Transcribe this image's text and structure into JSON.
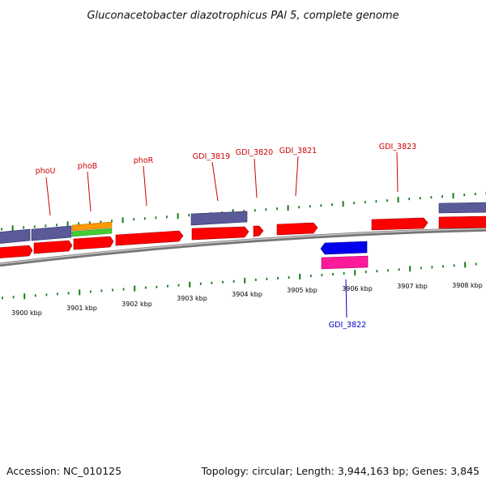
{
  "title": "Gluconacetobacter diazotrophicus PAl 5, complete genome",
  "footer": {
    "accession": "Accession: NC_010125",
    "stats": "Topology: circular; Length: 3,944,163 bp; Genes: 3,845"
  },
  "colors": {
    "gene_red": "#ff0000",
    "gene_purple": "#5a5a99",
    "gene_orange": "#ff9900",
    "gene_green": "#44cc33",
    "gene_blue": "#0000ee",
    "gene_magenta": "#ff1a9c",
    "label_red": "#cc0000",
    "label_blue": "#0000cc",
    "backbone": "#888888",
    "tick": "#1a7a1a"
  },
  "kbp_labels": [
    "3900 kbp",
    "3901 kbp",
    "3902 kbp",
    "3903 kbp",
    "3904 kbp",
    "3905 kbp",
    "3906 kbp",
    "3907 kbp",
    "3908 kbp"
  ],
  "gene_labels": [
    {
      "text": "phoU",
      "color": "red"
    },
    {
      "text": "phoB",
      "color": "red"
    },
    {
      "text": "phoR",
      "color": "red"
    },
    {
      "text": "GDI_3819",
      "color": "red"
    },
    {
      "text": "GDI_3820",
      "color": "red"
    },
    {
      "text": "GDI_3821",
      "color": "red"
    },
    {
      "text": "GDI_3823",
      "color": "red"
    },
    {
      "text": "GDI_3822",
      "color": "blue"
    }
  ]
}
